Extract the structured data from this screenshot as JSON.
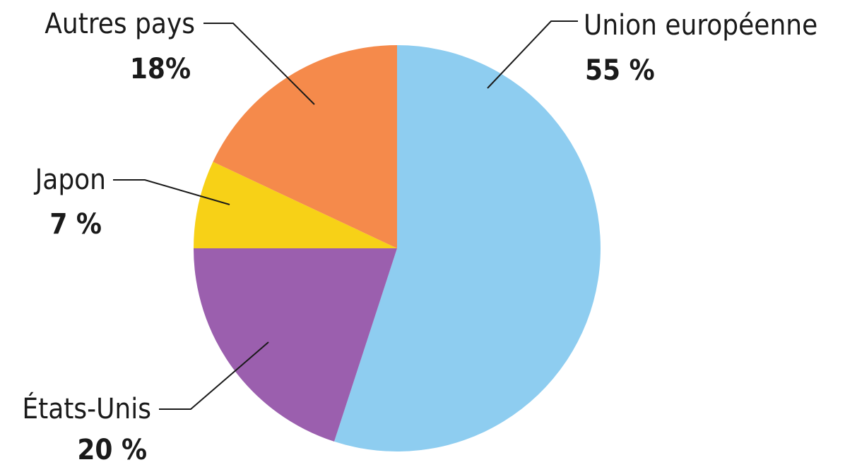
{
  "chart_data": {
    "type": "pie",
    "categories": [
      "Union européenne",
      "États-Unis",
      "Japon",
      "Autres pays"
    ],
    "values": [
      55,
      20,
      7,
      18
    ],
    "value_labels": [
      "55 %",
      "20 %",
      "7 %",
      "18%"
    ],
    "colors": [
      "#8ecdf0",
      "#9b5fae",
      "#f7d117",
      "#f58a4b"
    ]
  }
}
